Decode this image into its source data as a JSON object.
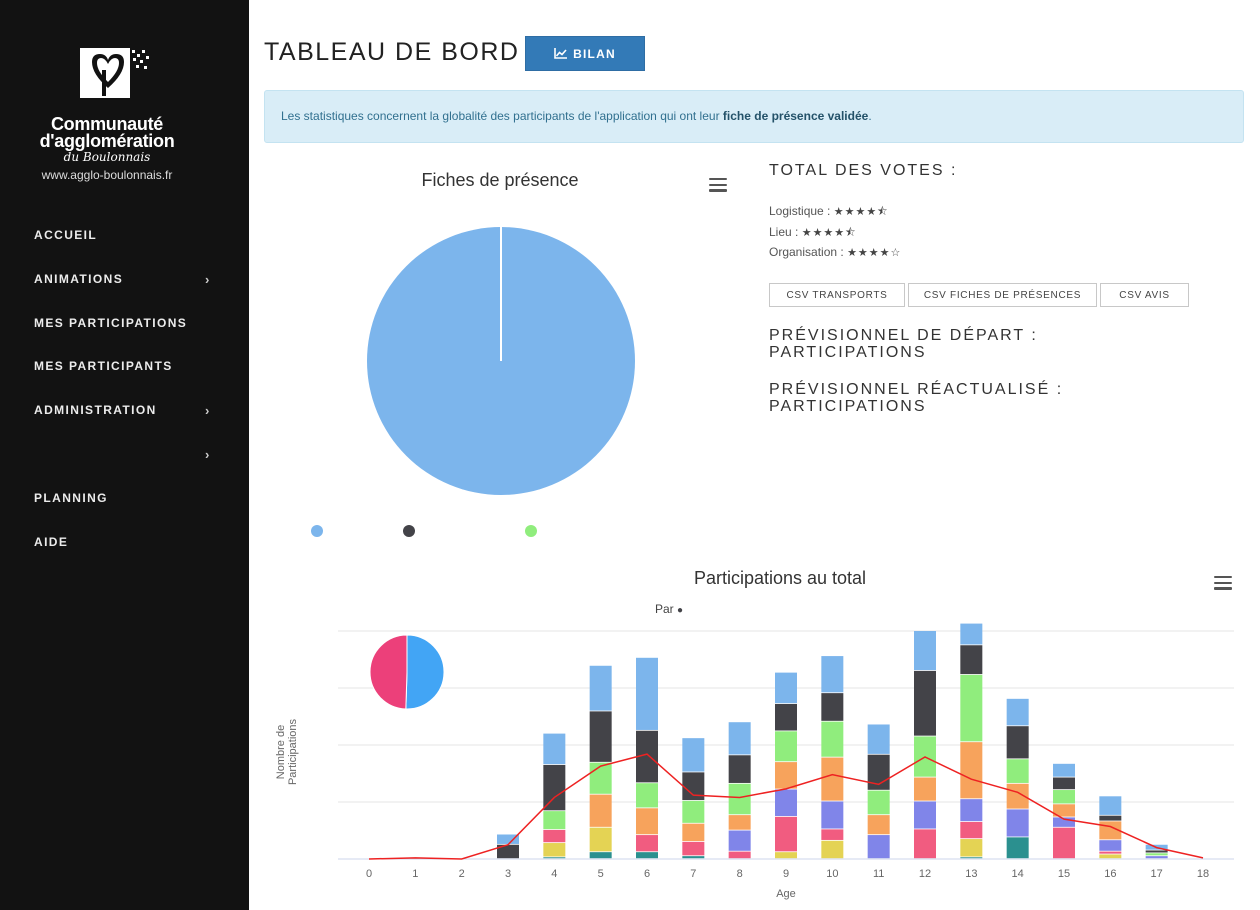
{
  "sidebar": {
    "logo": {
      "line1": "Communauté",
      "line2": "d'agglomération",
      "line3": "du Boulonnais",
      "line4": "www.agglo-boulonnais.fr"
    },
    "items": [
      {
        "label": "ACCUEIL",
        "has_chevron": false
      },
      {
        "label": "ANIMATIONS",
        "has_chevron": true
      },
      {
        "label": "MES PARTICIPATIONS",
        "has_chevron": false
      },
      {
        "label": "MES PARTICIPANTS",
        "has_chevron": false
      },
      {
        "label": "ADMINISTRATION",
        "has_chevron": true
      },
      {
        "label": "",
        "has_chevron": true
      },
      {
        "label": "PLANNING",
        "has_chevron": false
      },
      {
        "label": "AIDE",
        "has_chevron": false
      }
    ],
    "chevron": "›"
  },
  "header": {
    "title": "TABLEAU DE BORD",
    "bilan_label": "BILAN",
    "bilan_icon": "line-chart-icon"
  },
  "alert": {
    "text_before": "Les statistiques concernent la globalité des participants de l'application qui ont leur ",
    "text_bold": "fiche de présence validée",
    "text_after": "."
  },
  "colors": {
    "sidebar_bg": "#121212",
    "primary": "#337ab7",
    "alert_bg": "#d9edf7",
    "alert_text": "#31708f",
    "pie_fill": "#7cb5ec",
    "trend_line": "#ee2222"
  },
  "votes": {
    "title": "TOTAL DES VOTES :",
    "rows": [
      {
        "label": "Logistique :",
        "rating": 4.5,
        "stars": "★★★★⯪"
      },
      {
        "label": "Lieu :",
        "rating": 4.5,
        "stars": "★★★★⯪"
      },
      {
        "label": "Organisation :",
        "rating": 4,
        "stars": "★★★★☆"
      }
    ]
  },
  "csv_buttons": [
    "CSV TRANSPORTS",
    "CSV FICHES DE PRÉSENCES",
    "CSV AVIS"
  ],
  "previsionnel": {
    "depart_l1": "PRÉVISIONNEL DE DÉPART :",
    "depart_l2": "PARTICIPATIONS",
    "reactualise_l1": "PRÉVISIONNEL RÉACTUALISÉ :",
    "reactualise_l2": "PARTICIPATIONS"
  },
  "chart_data": [
    {
      "type": "pie",
      "title": "Fiches de présence",
      "slices": [
        {
          "value": 100,
          "color": "#7cb5ec"
        }
      ],
      "legend_colors": [
        "#7cb5ec",
        "#434348",
        "#90ed7d"
      ]
    },
    {
      "type": "bar",
      "stacked": true,
      "title": "Participations au total",
      "legend_text": "Par",
      "xlabel": "Age",
      "ylabel": "Nombre de Participations",
      "ylim": [
        0,
        40
      ],
      "categories": [
        "0",
        "1",
        "2",
        "3",
        "4",
        "5",
        "6",
        "7",
        "8",
        "9",
        "10",
        "11",
        "12",
        "13",
        "14",
        "15",
        "16",
        "17",
        "18"
      ],
      "series": [
        {
          "color": "#2b908f",
          "values": [
            0,
            0,
            0,
            0,
            0.3,
            1.2,
            1.2,
            0.5,
            0,
            0,
            0,
            0,
            0,
            0.3,
            3.8,
            0,
            0,
            0,
            0
          ]
        },
        {
          "color": "#e4d354",
          "values": [
            0,
            0,
            0,
            0,
            2.5,
            4.3,
            0,
            0,
            0,
            1.2,
            3.2,
            0,
            0,
            3.2,
            0,
            0,
            0.8,
            0,
            0
          ]
        },
        {
          "color": "#f15c80",
          "values": [
            0,
            0,
            0,
            0,
            2.3,
            0,
            3.0,
            2.5,
            1.3,
            6.2,
            2.0,
            0,
            5.2,
            3.0,
            0,
            5.5,
            0.5,
            0,
            0
          ]
        },
        {
          "color": "#8085e9",
          "values": [
            0,
            0,
            0,
            0,
            0,
            0,
            0,
            0,
            3.7,
            4.8,
            4.9,
            4.2,
            4.9,
            4.0,
            4.9,
            1.8,
            2.0,
            0.5,
            0
          ]
        },
        {
          "color": "#f7a35c",
          "values": [
            0,
            0,
            0,
            0,
            0,
            5.8,
            4.7,
            3.2,
            2.7,
            4.8,
            7.7,
            3.5,
            4.2,
            10.0,
            4.5,
            2.3,
            3.3,
            0,
            0
          ]
        },
        {
          "color": "#90ed7d",
          "values": [
            0,
            0,
            0,
            0,
            3.3,
            5.6,
            4.4,
            4.0,
            5.5,
            5.4,
            6.3,
            4.3,
            7.2,
            11.8,
            4.3,
            2.5,
            0,
            0.5,
            0
          ]
        },
        {
          "color": "#434348",
          "values": [
            0,
            0,
            0,
            2.5,
            8.1,
            9.0,
            9.2,
            5.0,
            5.0,
            4.8,
            5.0,
            6.3,
            11.5,
            5.2,
            5.8,
            2.2,
            1.0,
            0.5,
            0
          ]
        },
        {
          "color": "#7cb5ec",
          "values": [
            0,
            0,
            0,
            1.8,
            5.5,
            8.0,
            12.8,
            6.0,
            5.8,
            5.5,
            6.5,
            5.3,
            7.0,
            3.8,
            4.8,
            2.4,
            3.4,
            1.0,
            0
          ]
        }
      ],
      "trend": {
        "color": "#ee2222",
        "values": [
          0,
          0.2,
          0,
          2.5,
          10.8,
          16.3,
          18.4,
          11.2,
          10.8,
          12.3,
          14.8,
          13.1,
          17.9,
          14.0,
          11.7,
          7.0,
          5.7,
          2.0,
          0.2
        ]
      },
      "inset_pie": {
        "slices": [
          {
            "value": 50.5,
            "color": "#42a5f5"
          },
          {
            "value": 49.5,
            "color": "#ec407a"
          }
        ]
      }
    }
  ]
}
